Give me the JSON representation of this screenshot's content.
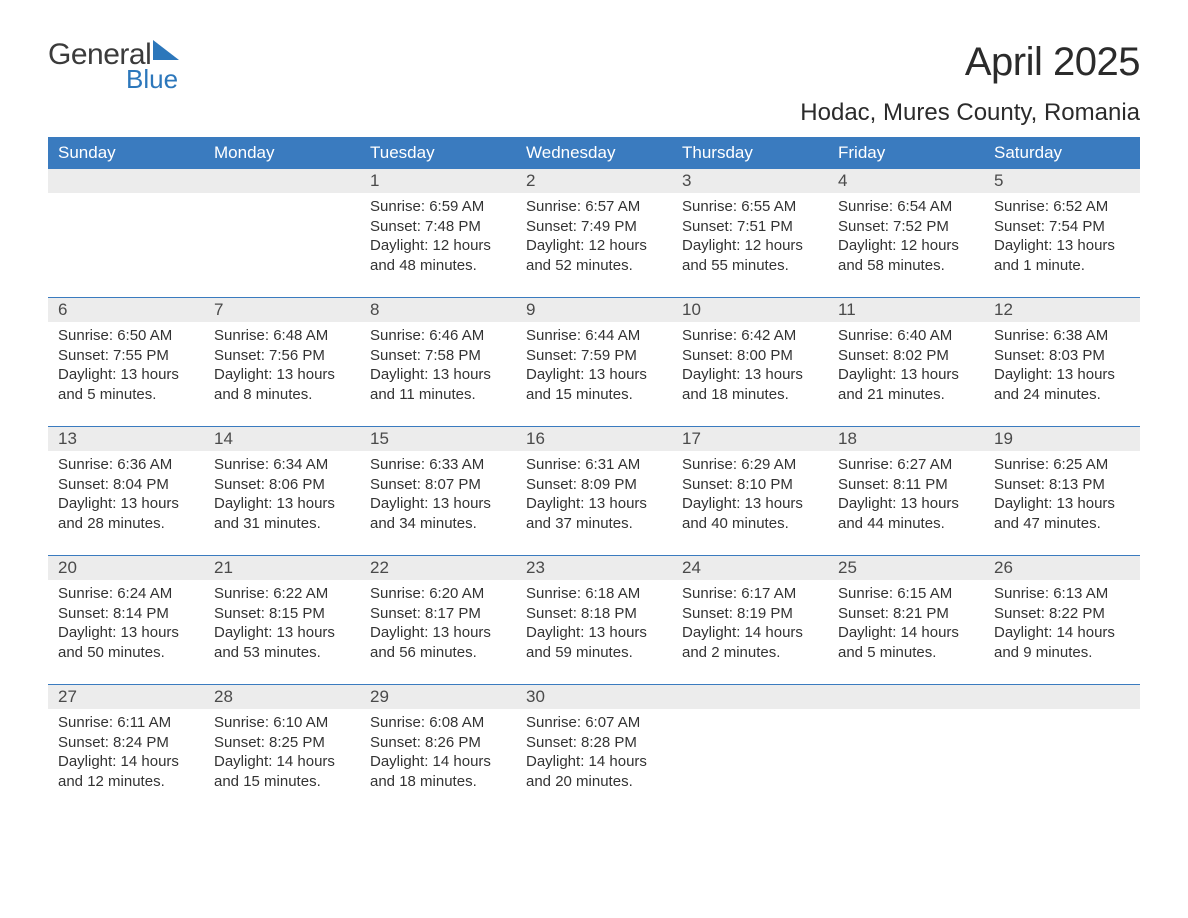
{
  "logo": {
    "general": "General",
    "blue": "Blue",
    "tri_color": "#2c77bb"
  },
  "title": "April 2025",
  "location": "Hodac, Mures County, Romania",
  "colors": {
    "header_bg": "#3a7bbf",
    "header_text": "#ffffff",
    "daynum_bg": "#ececec",
    "week_border": "#3a7bbf",
    "body_text": "#333333"
  },
  "day_headers": [
    "Sunday",
    "Monday",
    "Tuesday",
    "Wednesday",
    "Thursday",
    "Friday",
    "Saturday"
  ],
  "weeks": [
    [
      null,
      null,
      {
        "n": "1",
        "sr": "Sunrise: 6:59 AM",
        "ss": "Sunset: 7:48 PM",
        "dl1": "Daylight: 12 hours",
        "dl2": "and 48 minutes."
      },
      {
        "n": "2",
        "sr": "Sunrise: 6:57 AM",
        "ss": "Sunset: 7:49 PM",
        "dl1": "Daylight: 12 hours",
        "dl2": "and 52 minutes."
      },
      {
        "n": "3",
        "sr": "Sunrise: 6:55 AM",
        "ss": "Sunset: 7:51 PM",
        "dl1": "Daylight: 12 hours",
        "dl2": "and 55 minutes."
      },
      {
        "n": "4",
        "sr": "Sunrise: 6:54 AM",
        "ss": "Sunset: 7:52 PM",
        "dl1": "Daylight: 12 hours",
        "dl2": "and 58 minutes."
      },
      {
        "n": "5",
        "sr": "Sunrise: 6:52 AM",
        "ss": "Sunset: 7:54 PM",
        "dl1": "Daylight: 13 hours",
        "dl2": "and 1 minute."
      }
    ],
    [
      {
        "n": "6",
        "sr": "Sunrise: 6:50 AM",
        "ss": "Sunset: 7:55 PM",
        "dl1": "Daylight: 13 hours",
        "dl2": "and 5 minutes."
      },
      {
        "n": "7",
        "sr": "Sunrise: 6:48 AM",
        "ss": "Sunset: 7:56 PM",
        "dl1": "Daylight: 13 hours",
        "dl2": "and 8 minutes."
      },
      {
        "n": "8",
        "sr": "Sunrise: 6:46 AM",
        "ss": "Sunset: 7:58 PM",
        "dl1": "Daylight: 13 hours",
        "dl2": "and 11 minutes."
      },
      {
        "n": "9",
        "sr": "Sunrise: 6:44 AM",
        "ss": "Sunset: 7:59 PM",
        "dl1": "Daylight: 13 hours",
        "dl2": "and 15 minutes."
      },
      {
        "n": "10",
        "sr": "Sunrise: 6:42 AM",
        "ss": "Sunset: 8:00 PM",
        "dl1": "Daylight: 13 hours",
        "dl2": "and 18 minutes."
      },
      {
        "n": "11",
        "sr": "Sunrise: 6:40 AM",
        "ss": "Sunset: 8:02 PM",
        "dl1": "Daylight: 13 hours",
        "dl2": "and 21 minutes."
      },
      {
        "n": "12",
        "sr": "Sunrise: 6:38 AM",
        "ss": "Sunset: 8:03 PM",
        "dl1": "Daylight: 13 hours",
        "dl2": "and 24 minutes."
      }
    ],
    [
      {
        "n": "13",
        "sr": "Sunrise: 6:36 AM",
        "ss": "Sunset: 8:04 PM",
        "dl1": "Daylight: 13 hours",
        "dl2": "and 28 minutes."
      },
      {
        "n": "14",
        "sr": "Sunrise: 6:34 AM",
        "ss": "Sunset: 8:06 PM",
        "dl1": "Daylight: 13 hours",
        "dl2": "and 31 minutes."
      },
      {
        "n": "15",
        "sr": "Sunrise: 6:33 AM",
        "ss": "Sunset: 8:07 PM",
        "dl1": "Daylight: 13 hours",
        "dl2": "and 34 minutes."
      },
      {
        "n": "16",
        "sr": "Sunrise: 6:31 AM",
        "ss": "Sunset: 8:09 PM",
        "dl1": "Daylight: 13 hours",
        "dl2": "and 37 minutes."
      },
      {
        "n": "17",
        "sr": "Sunrise: 6:29 AM",
        "ss": "Sunset: 8:10 PM",
        "dl1": "Daylight: 13 hours",
        "dl2": "and 40 minutes."
      },
      {
        "n": "18",
        "sr": "Sunrise: 6:27 AM",
        "ss": "Sunset: 8:11 PM",
        "dl1": "Daylight: 13 hours",
        "dl2": "and 44 minutes."
      },
      {
        "n": "19",
        "sr": "Sunrise: 6:25 AM",
        "ss": "Sunset: 8:13 PM",
        "dl1": "Daylight: 13 hours",
        "dl2": "and 47 minutes."
      }
    ],
    [
      {
        "n": "20",
        "sr": "Sunrise: 6:24 AM",
        "ss": "Sunset: 8:14 PM",
        "dl1": "Daylight: 13 hours",
        "dl2": "and 50 minutes."
      },
      {
        "n": "21",
        "sr": "Sunrise: 6:22 AM",
        "ss": "Sunset: 8:15 PM",
        "dl1": "Daylight: 13 hours",
        "dl2": "and 53 minutes."
      },
      {
        "n": "22",
        "sr": "Sunrise: 6:20 AM",
        "ss": "Sunset: 8:17 PM",
        "dl1": "Daylight: 13 hours",
        "dl2": "and 56 minutes."
      },
      {
        "n": "23",
        "sr": "Sunrise: 6:18 AM",
        "ss": "Sunset: 8:18 PM",
        "dl1": "Daylight: 13 hours",
        "dl2": "and 59 minutes."
      },
      {
        "n": "24",
        "sr": "Sunrise: 6:17 AM",
        "ss": "Sunset: 8:19 PM",
        "dl1": "Daylight: 14 hours",
        "dl2": "and 2 minutes."
      },
      {
        "n": "25",
        "sr": "Sunrise: 6:15 AM",
        "ss": "Sunset: 8:21 PM",
        "dl1": "Daylight: 14 hours",
        "dl2": "and 5 minutes."
      },
      {
        "n": "26",
        "sr": "Sunrise: 6:13 AM",
        "ss": "Sunset: 8:22 PM",
        "dl1": "Daylight: 14 hours",
        "dl2": "and 9 minutes."
      }
    ],
    [
      {
        "n": "27",
        "sr": "Sunrise: 6:11 AM",
        "ss": "Sunset: 8:24 PM",
        "dl1": "Daylight: 14 hours",
        "dl2": "and 12 minutes."
      },
      {
        "n": "28",
        "sr": "Sunrise: 6:10 AM",
        "ss": "Sunset: 8:25 PM",
        "dl1": "Daylight: 14 hours",
        "dl2": "and 15 minutes."
      },
      {
        "n": "29",
        "sr": "Sunrise: 6:08 AM",
        "ss": "Sunset: 8:26 PM",
        "dl1": "Daylight: 14 hours",
        "dl2": "and 18 minutes."
      },
      {
        "n": "30",
        "sr": "Sunrise: 6:07 AM",
        "ss": "Sunset: 8:28 PM",
        "dl1": "Daylight: 14 hours",
        "dl2": "and 20 minutes."
      },
      null,
      null,
      null
    ]
  ]
}
